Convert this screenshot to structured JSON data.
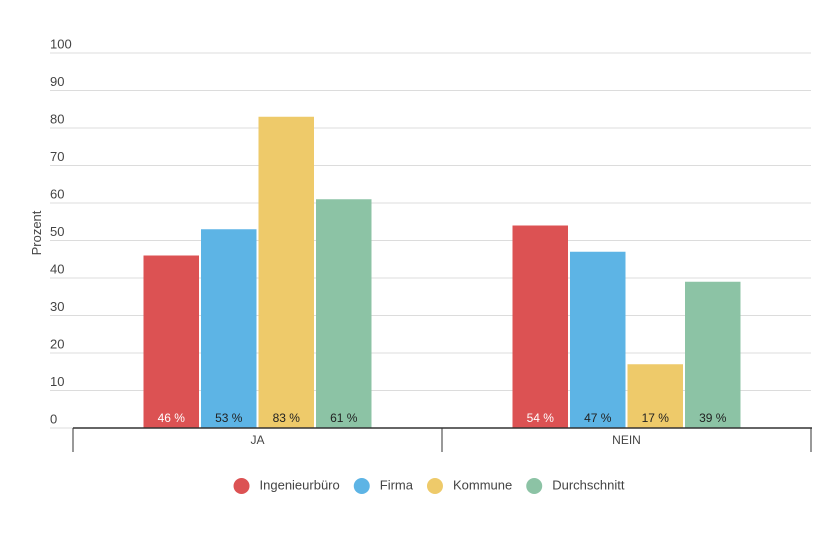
{
  "chart_data": {
    "type": "bar",
    "categories": [
      "JA",
      "NEIN"
    ],
    "y_label": "Prozent",
    "series": [
      {
        "name": "Ingenieurbüro",
        "color": "#dc5253",
        "values": [
          46,
          54
        ],
        "value_labels": [
          "46 %",
          "54 %"
        ]
      },
      {
        "name": "Firma",
        "color": "#5db4e5",
        "values": [
          53,
          47
        ],
        "value_labels": [
          "53 %",
          "47 %"
        ]
      },
      {
        "name": "Kommune",
        "color": "#eeca6a",
        "values": [
          83,
          17
        ],
        "value_labels": [
          "83 %",
          "17 %"
        ]
      },
      {
        "name": "Durchschnitt",
        "color": "#8cc3a5",
        "values": [
          61,
          39
        ],
        "value_labels": [
          "61 %",
          "39 %"
        ]
      }
    ],
    "ylim": [
      0,
      100
    ],
    "yticks": [
      0,
      10,
      20,
      30,
      40,
      50,
      60,
      70,
      80,
      90,
      100
    ],
    "grid": true,
    "legend": "bottom"
  }
}
